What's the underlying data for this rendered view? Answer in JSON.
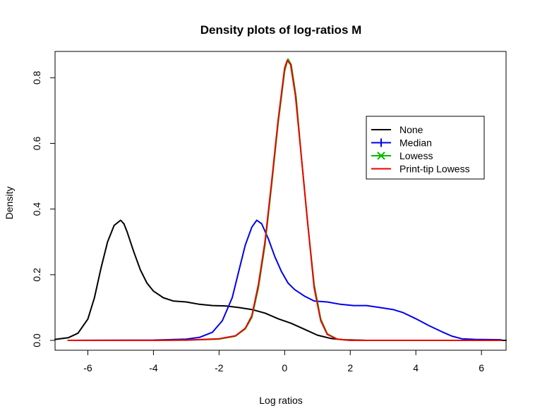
{
  "chart_data": {
    "type": "line",
    "title": "Density plots of log-ratios M",
    "xlabel": "Log ratios",
    "ylabel": "Density",
    "xlim": [
      -7.0,
      6.75
    ],
    "ylim": [
      -0.03,
      0.88
    ],
    "x_ticks": [
      -6,
      -4,
      -2,
      0,
      2,
      4,
      6
    ],
    "x_tick_labels": [
      "-6",
      "-4",
      "-2",
      "0",
      "2",
      "4",
      "6"
    ],
    "y_ticks": [
      0.0,
      0.2,
      0.4,
      0.6,
      0.8
    ],
    "y_tick_labels": [
      "0.0",
      "0.2",
      "0.4",
      "0.6",
      "0.8"
    ],
    "grid": false,
    "legend_position": "top-right",
    "series": [
      {
        "name": "None",
        "color": "#000000",
        "marker": "none",
        "points": [
          [
            -7.0,
            0.003
          ],
          [
            -6.6,
            0.008
          ],
          [
            -6.3,
            0.022
          ],
          [
            -6.0,
            0.065
          ],
          [
            -5.8,
            0.13
          ],
          [
            -5.6,
            0.22
          ],
          [
            -5.4,
            0.3
          ],
          [
            -5.2,
            0.35
          ],
          [
            -5.0,
            0.366
          ],
          [
            -4.9,
            0.355
          ],
          [
            -4.8,
            0.33
          ],
          [
            -4.6,
            0.27
          ],
          [
            -4.4,
            0.215
          ],
          [
            -4.2,
            0.175
          ],
          [
            -4.0,
            0.15
          ],
          [
            -3.7,
            0.13
          ],
          [
            -3.4,
            0.12
          ],
          [
            -3.0,
            0.117
          ],
          [
            -2.6,
            0.11
          ],
          [
            -2.2,
            0.106
          ],
          [
            -1.8,
            0.105
          ],
          [
            -1.4,
            0.1
          ],
          [
            -1.0,
            0.094
          ],
          [
            -0.6,
            0.083
          ],
          [
            -0.2,
            0.066
          ],
          [
            0.2,
            0.052
          ],
          [
            0.6,
            0.034
          ],
          [
            1.0,
            0.016
          ],
          [
            1.4,
            0.006
          ],
          [
            1.8,
            0.002
          ],
          [
            2.5,
            0.0
          ],
          [
            4.0,
            0.0
          ],
          [
            6.75,
            0.0
          ]
        ]
      },
      {
        "name": "Median",
        "color": "#0000ee",
        "marker": "plus",
        "points": [
          [
            -6.6,
            0.0
          ],
          [
            -4.0,
            0.001
          ],
          [
            -3.0,
            0.004
          ],
          [
            -2.6,
            0.009
          ],
          [
            -2.2,
            0.025
          ],
          [
            -1.9,
            0.06
          ],
          [
            -1.6,
            0.13
          ],
          [
            -1.4,
            0.21
          ],
          [
            -1.2,
            0.29
          ],
          [
            -1.0,
            0.345
          ],
          [
            -0.85,
            0.366
          ],
          [
            -0.7,
            0.355
          ],
          [
            -0.5,
            0.31
          ],
          [
            -0.3,
            0.255
          ],
          [
            -0.1,
            0.21
          ],
          [
            0.1,
            0.175
          ],
          [
            0.3,
            0.155
          ],
          [
            0.6,
            0.135
          ],
          [
            0.9,
            0.12
          ],
          [
            1.3,
            0.117
          ],
          [
            1.7,
            0.11
          ],
          [
            2.1,
            0.106
          ],
          [
            2.5,
            0.106
          ],
          [
            2.9,
            0.1
          ],
          [
            3.3,
            0.094
          ],
          [
            3.6,
            0.085
          ],
          [
            4.0,
            0.066
          ],
          [
            4.4,
            0.045
          ],
          [
            4.8,
            0.026
          ],
          [
            5.1,
            0.013
          ],
          [
            5.4,
            0.005
          ],
          [
            5.8,
            0.003
          ],
          [
            6.6,
            0.002
          ]
        ]
      },
      {
        "name": "Lowess",
        "color": "#00bb00",
        "marker": "x",
        "points": [
          [
            -6.6,
            0.0
          ],
          [
            -4.0,
            0.0
          ],
          [
            -3.0,
            0.001
          ],
          [
            -2.0,
            0.004
          ],
          [
            -1.5,
            0.013
          ],
          [
            -1.2,
            0.035
          ],
          [
            -1.0,
            0.07
          ],
          [
            -0.8,
            0.16
          ],
          [
            -0.6,
            0.29
          ],
          [
            -0.4,
            0.47
          ],
          [
            -0.2,
            0.66
          ],
          [
            0.0,
            0.82
          ],
          [
            0.1,
            0.857
          ],
          [
            0.2,
            0.84
          ],
          [
            0.35,
            0.74
          ],
          [
            0.5,
            0.57
          ],
          [
            0.7,
            0.36
          ],
          [
            0.9,
            0.17
          ],
          [
            1.1,
            0.065
          ],
          [
            1.3,
            0.02
          ],
          [
            1.6,
            0.004
          ],
          [
            2.0,
            0.0
          ],
          [
            6.6,
            0.0
          ]
        ]
      },
      {
        "name": "Print-tip Lowess",
        "color": "#ee0000",
        "marker": "none",
        "points": [
          [
            -6.6,
            0.0
          ],
          [
            -4.0,
            0.0
          ],
          [
            -3.0,
            0.001
          ],
          [
            -2.0,
            0.005
          ],
          [
            -1.5,
            0.014
          ],
          [
            -1.2,
            0.037
          ],
          [
            -1.0,
            0.075
          ],
          [
            -0.8,
            0.17
          ],
          [
            -0.6,
            0.3
          ],
          [
            -0.4,
            0.48
          ],
          [
            -0.2,
            0.67
          ],
          [
            0.0,
            0.83
          ],
          [
            0.08,
            0.853
          ],
          [
            0.18,
            0.84
          ],
          [
            0.33,
            0.745
          ],
          [
            0.5,
            0.57
          ],
          [
            0.7,
            0.36
          ],
          [
            0.9,
            0.16
          ],
          [
            1.1,
            0.06
          ],
          [
            1.3,
            0.018
          ],
          [
            1.6,
            0.004
          ],
          [
            2.0,
            0.0
          ],
          [
            6.6,
            0.0
          ]
        ]
      }
    ]
  }
}
